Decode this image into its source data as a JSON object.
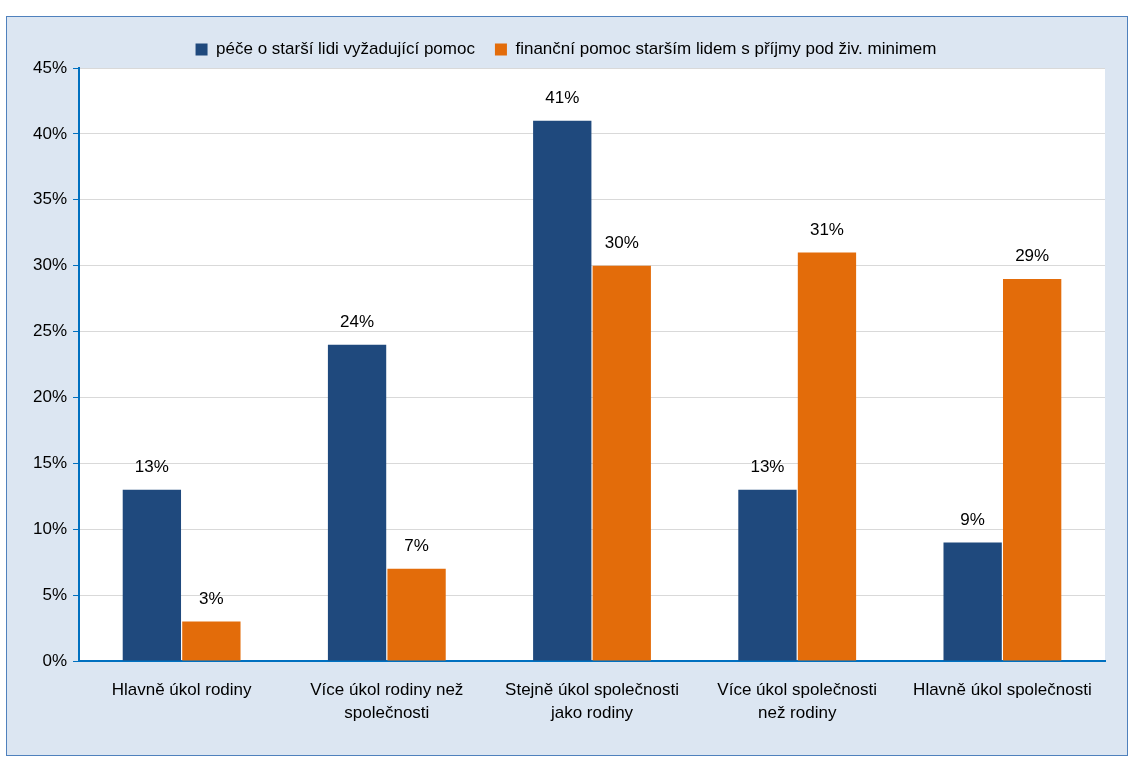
{
  "chart_data": {
    "type": "bar",
    "categories": [
      "Hlavně úkol rodiny",
      "Více úkol rodiny než společnosti",
      "Stejně úkol společnosti jako rodiny",
      "Více úkol společnosti než rodiny",
      "Hlavně úkol společnosti"
    ],
    "series": [
      {
        "name": "péče o starší lidi vyžadující pomoc",
        "color": "#1f497d",
        "values": [
          13,
          24,
          41,
          13,
          9
        ],
        "value_labels": [
          "13%",
          "24%",
          "41%",
          "13%",
          "9%"
        ]
      },
      {
        "name": "finanční pomoc starším lidem s příjmy pod živ. minimem",
        "color": "#e36c0a",
        "values": [
          3,
          7,
          30,
          31,
          29
        ],
        "value_labels": [
          "3%",
          "7%",
          "30%",
          "31%",
          "29%"
        ]
      }
    ],
    "ylim": [
      0,
      45
    ],
    "yticks": [
      {
        "value": 0,
        "label": "0%"
      },
      {
        "value": 5,
        "label": "5%"
      },
      {
        "value": 10,
        "label": "10%"
      },
      {
        "value": 15,
        "label": "15%"
      },
      {
        "value": 20,
        "label": "20%"
      },
      {
        "value": 25,
        "label": "25%"
      },
      {
        "value": 30,
        "label": "30%"
      },
      {
        "value": 35,
        "label": "35%"
      },
      {
        "value": 40,
        "label": "40%"
      },
      {
        "value": 45,
        "label": "45%"
      }
    ],
    "grid": "y",
    "legend": "top"
  }
}
